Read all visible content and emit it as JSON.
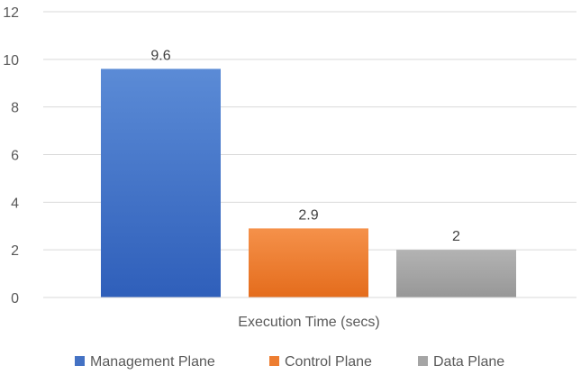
{
  "chart_data": {
    "type": "bar",
    "title": "",
    "xlabel": "Execution Time (secs)",
    "ylabel": "",
    "ylim": [
      0,
      12
    ],
    "yticks": [
      0,
      2,
      4,
      6,
      8,
      10,
      12
    ],
    "grid": true,
    "legend_position": "bottom",
    "categories": [
      "Execution Time (secs)"
    ],
    "series": [
      {
        "name": "Management Plane",
        "values": [
          9.6
        ],
        "color": "#4472c4",
        "value_label": "9.6"
      },
      {
        "name": "Control Plane",
        "values": [
          2.9
        ],
        "color": "#ed7d31",
        "value_label": "2.9"
      },
      {
        "name": "Data Plane",
        "values": [
          2
        ],
        "color": "#a5a5a5",
        "value_label": "2"
      }
    ]
  }
}
